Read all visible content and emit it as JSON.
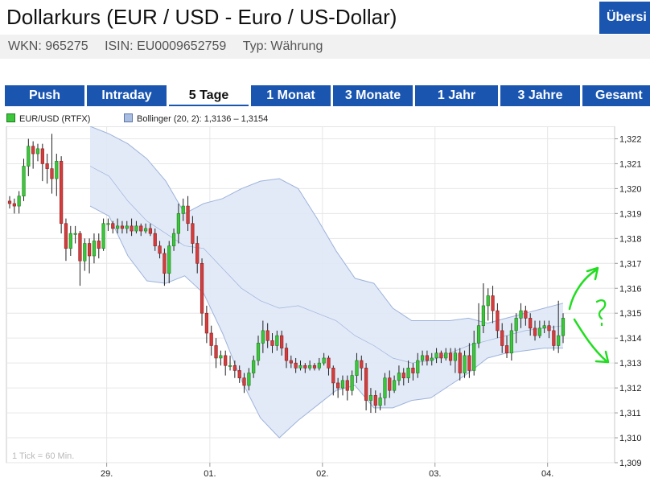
{
  "header": {
    "title": "Dollarkurs (EUR / USD - Euro / US-Dollar)",
    "overview_button": "Übersi",
    "wkn": "WKN: 965275",
    "isin": "ISIN: EU0009652759",
    "typ": "Typ: Währung"
  },
  "tabs": [
    {
      "label": "Push"
    },
    {
      "label": "Intraday"
    },
    {
      "label": "5 Tage"
    },
    {
      "label": "1 Monat"
    },
    {
      "label": "3 Monate"
    },
    {
      "label": "1 Jahr"
    },
    {
      "label": "3 Jahre"
    },
    {
      "label": "Gesamt"
    }
  ],
  "active_tab": "5 Tage",
  "legend": {
    "series1": "EUR/USD (RTFX)",
    "series2": "Bollinger (20, 2): 1,3136 – 1,3154"
  },
  "footnote": "1 Tick = 60 Min.",
  "colors": {
    "accent": "#1a55b0",
    "up": "#3bc63b",
    "down": "#d63c3c",
    "band_fill": "#dfe8f7",
    "band_line": "#9db3da",
    "annotation": "#22dd22"
  },
  "chart_data": {
    "type": "candlestick",
    "x_tick_labels": [
      "29.",
      "01.",
      "02.",
      "03.",
      "04."
    ],
    "y_ticks": [
      "1,309",
      "1,310",
      "1,311",
      "1,312",
      "1,313",
      "1,314",
      "1,315",
      "1,316",
      "1,317",
      "1,318",
      "1,319",
      "1,320",
      "1,321",
      "1,322"
    ],
    "ylim": [
      1.309,
      1.3225
    ],
    "grid": true,
    "candles": [
      [
        1.3195,
        1.3194,
        1.3197,
        1.3192
      ],
      [
        1.3194,
        1.3193,
        1.3196,
        1.319
      ],
      [
        1.3193,
        1.3197,
        1.3199,
        1.319
      ],
      [
        1.3197,
        1.3209,
        1.3212,
        1.3195
      ],
      [
        1.3209,
        1.3217,
        1.322,
        1.3205
      ],
      [
        1.3217,
        1.3214,
        1.3219,
        1.3208
      ],
      [
        1.3214,
        1.3216,
        1.3218,
        1.3211
      ],
      [
        1.3216,
        1.321,
        1.3218,
        1.3203
      ],
      [
        1.321,
        1.3208,
        1.3214,
        1.3202
      ],
      [
        1.3208,
        1.3204,
        1.3222,
        1.3198
      ],
      [
        1.3204,
        1.3211,
        1.3214,
        1.3197
      ],
      [
        1.3211,
        1.3186,
        1.3213,
        1.3182
      ],
      [
        1.3186,
        1.3176,
        1.3188,
        1.3171
      ],
      [
        1.3176,
        1.3182,
        1.3185,
        1.3173
      ],
      [
        1.3182,
        1.3182,
        1.3185,
        1.3178
      ],
      [
        1.3182,
        1.3171,
        1.3183,
        1.3161
      ],
      [
        1.3171,
        1.3178,
        1.318,
        1.3167
      ],
      [
        1.3178,
        1.3173,
        1.318,
        1.3166
      ],
      [
        1.3173,
        1.3179,
        1.3182,
        1.317
      ],
      [
        1.3179,
        1.3176,
        1.3182,
        1.3172
      ],
      [
        1.3176,
        1.3186,
        1.3188,
        1.3175
      ],
      [
        1.3186,
        1.3186,
        1.3188,
        1.3183
      ],
      [
        1.3186,
        1.3184,
        1.3187,
        1.3182
      ],
      [
        1.3184,
        1.3185,
        1.3188,
        1.3182
      ],
      [
        1.3185,
        1.3184,
        1.3187,
        1.3182
      ],
      [
        1.3184,
        1.3185,
        1.3187,
        1.3182
      ],
      [
        1.3185,
        1.3183,
        1.3188,
        1.3181
      ],
      [
        1.3183,
        1.3185,
        1.3187,
        1.3182
      ],
      [
        1.3185,
        1.3183,
        1.3186,
        1.3181
      ],
      [
        1.3183,
        1.3184,
        1.3186,
        1.3182
      ],
      [
        1.3184,
        1.3182,
        1.3186,
        1.3181
      ],
      [
        1.3182,
        1.3177,
        1.3184,
        1.3175
      ],
      [
        1.3177,
        1.3174,
        1.3179,
        1.3172
      ],
      [
        1.3174,
        1.3166,
        1.3176,
        1.3161
      ],
      [
        1.3166,
        1.3177,
        1.3179,
        1.3162
      ],
      [
        1.3177,
        1.3182,
        1.3184,
        1.3175
      ],
      [
        1.3182,
        1.319,
        1.3194,
        1.3178
      ],
      [
        1.319,
        1.3193,
        1.3196,
        1.3187
      ],
      [
        1.3193,
        1.3186,
        1.3197,
        1.3183
      ],
      [
        1.3186,
        1.3178,
        1.3189,
        1.3174
      ],
      [
        1.3178,
        1.317,
        1.3181,
        1.3166
      ],
      [
        1.317,
        1.315,
        1.3172,
        1.3145
      ],
      [
        1.315,
        1.3142,
        1.3153,
        1.3138
      ],
      [
        1.3142,
        1.3137,
        1.3145,
        1.3133
      ],
      [
        1.3137,
        1.3132,
        1.314,
        1.3128
      ],
      [
        1.3132,
        1.3133,
        1.3135,
        1.3129
      ],
      [
        1.3133,
        1.3129,
        1.3135,
        1.3125
      ],
      [
        1.3129,
        1.3129,
        1.3133,
        1.3127
      ],
      [
        1.3129,
        1.3127,
        1.3131,
        1.3124
      ],
      [
        1.3127,
        1.3124,
        1.3129,
        1.3122
      ],
      [
        1.3124,
        1.3121,
        1.3126,
        1.3118
      ],
      [
        1.3121,
        1.3126,
        1.3128,
        1.3119
      ],
      [
        1.3126,
        1.3131,
        1.3133,
        1.3124
      ],
      [
        1.3131,
        1.3138,
        1.3141,
        1.3129
      ],
      [
        1.3138,
        1.3143,
        1.3147,
        1.3134
      ],
      [
        1.3143,
        1.3139,
        1.3146,
        1.3136
      ],
      [
        1.3139,
        1.3137,
        1.3142,
        1.3134
      ],
      [
        1.3137,
        1.3141,
        1.3143,
        1.3135
      ],
      [
        1.3141,
        1.3136,
        1.3143,
        1.3133
      ],
      [
        1.3136,
        1.3131,
        1.3138,
        1.3128
      ],
      [
        1.3131,
        1.313,
        1.3133,
        1.3128
      ],
      [
        1.313,
        1.3128,
        1.3132,
        1.3126
      ],
      [
        1.3128,
        1.3129,
        1.3131,
        1.3127
      ],
      [
        1.3129,
        1.3128,
        1.313,
        1.3126
      ],
      [
        1.3128,
        1.3129,
        1.3131,
        1.3127
      ],
      [
        1.3129,
        1.3128,
        1.313,
        1.3127
      ],
      [
        1.3128,
        1.313,
        1.3132,
        1.3127
      ],
      [
        1.313,
        1.3132,
        1.3134,
        1.3129
      ],
      [
        1.3132,
        1.3128,
        1.3133,
        1.3125
      ],
      [
        1.3128,
        1.3122,
        1.3129,
        1.3117
      ],
      [
        1.3122,
        1.312,
        1.3124,
        1.3116
      ],
      [
        1.312,
        1.3123,
        1.3125,
        1.3117
      ],
      [
        1.3123,
        1.3119,
        1.3125,
        1.3115
      ],
      [
        1.3119,
        1.3125,
        1.3127,
        1.3117
      ],
      [
        1.3125,
        1.3131,
        1.3134,
        1.3122
      ],
      [
        1.3131,
        1.3128,
        1.3133,
        1.3123
      ],
      [
        1.3128,
        1.3115,
        1.313,
        1.3111
      ],
      [
        1.3115,
        1.3117,
        1.312,
        1.311
      ],
      [
        1.3117,
        1.3113,
        1.3119,
        1.311
      ],
      [
        1.3113,
        1.3116,
        1.3118,
        1.3111
      ],
      [
        1.3116,
        1.3124,
        1.3126,
        1.3113
      ],
      [
        1.3124,
        1.3119,
        1.3127,
        1.3116
      ],
      [
        1.3119,
        1.3123,
        1.3125,
        1.3118
      ],
      [
        1.3123,
        1.3126,
        1.3129,
        1.3121
      ],
      [
        1.3126,
        1.3124,
        1.3128,
        1.3121
      ],
      [
        1.3124,
        1.3128,
        1.3131,
        1.3122
      ],
      [
        1.3128,
        1.3126,
        1.313,
        1.3123
      ],
      [
        1.3126,
        1.3131,
        1.3134,
        1.3124
      ],
      [
        1.3131,
        1.3133,
        1.3135,
        1.3129
      ],
      [
        1.3133,
        1.3131,
        1.3135,
        1.3129
      ],
      [
        1.3131,
        1.3132,
        1.3134,
        1.3129
      ],
      [
        1.3132,
        1.3134,
        1.3136,
        1.313
      ],
      [
        1.3134,
        1.3132,
        1.3135,
        1.313
      ],
      [
        1.3132,
        1.3134,
        1.3136,
        1.3131
      ],
      [
        1.3134,
        1.3131,
        1.3136,
        1.3129
      ],
      [
        1.3131,
        1.3134,
        1.3136,
        1.3126
      ],
      [
        1.3134,
        1.3126,
        1.3136,
        1.3123
      ],
      [
        1.3126,
        1.3133,
        1.3135,
        1.3124
      ],
      [
        1.3133,
        1.3127,
        1.3138,
        1.3124
      ],
      [
        1.3127,
        1.3138,
        1.3143,
        1.3125
      ],
      [
        1.3138,
        1.3145,
        1.3154,
        1.3136
      ],
      [
        1.3145,
        1.3153,
        1.3162,
        1.3142
      ],
      [
        1.3153,
        1.3157,
        1.316,
        1.3147
      ],
      [
        1.3157,
        1.3151,
        1.3161,
        1.3146
      ],
      [
        1.3151,
        1.3143,
        1.3154,
        1.314
      ],
      [
        1.3143,
        1.3137,
        1.3146,
        1.3134
      ],
      [
        1.3137,
        1.3134,
        1.3141,
        1.3132
      ],
      [
        1.3134,
        1.3143,
        1.3146,
        1.3131
      ],
      [
        1.3143,
        1.3148,
        1.315,
        1.3138
      ],
      [
        1.3148,
        1.3151,
        1.3154,
        1.3144
      ],
      [
        1.3151,
        1.3148,
        1.3153,
        1.3145
      ],
      [
        1.3148,
        1.3144,
        1.315,
        1.3141
      ],
      [
        1.3144,
        1.3141,
        1.3147,
        1.3139
      ],
      [
        1.3141,
        1.3144,
        1.3147,
        1.314
      ],
      [
        1.3144,
        1.3145,
        1.3147,
        1.3142
      ],
      [
        1.3145,
        1.3143,
        1.3147,
        1.314
      ],
      [
        1.3143,
        1.3137,
        1.3145,
        1.3135
      ],
      [
        1.3137,
        1.3141,
        1.3155,
        1.3134
      ],
      [
        1.3141,
        1.3148,
        1.315,
        1.3138
      ]
    ],
    "bollinger_upper": [
      1.3225,
      1.3222,
      1.3218,
      1.3212,
      1.3203,
      1.319,
      1.3194,
      1.3196,
      1.32,
      1.3203,
      1.3204,
      1.32,
      1.3188,
      1.3175,
      1.3164,
      1.3162,
      1.3152,
      1.3147,
      1.3147,
      1.3147,
      1.3148,
      1.3146,
      1.3148,
      1.315,
      1.3152,
      1.3154
    ],
    "bollinger_lower": [
      1.3193,
      1.3189,
      1.3173,
      1.3163,
      1.3162,
      1.3165,
      1.3158,
      1.3142,
      1.3123,
      1.3108,
      1.31,
      1.3107,
      1.3113,
      1.3119,
      1.3121,
      1.3112,
      1.3112,
      1.3115,
      1.3116,
      1.3121,
      1.3126,
      1.3132,
      1.3134,
      1.3135,
      1.3136,
      1.3136
    ],
    "bollinger_middle": [
      1.3209,
      1.3205,
      1.3195,
      1.3187,
      1.3182,
      1.3177,
      1.3176,
      1.3168,
      1.316,
      1.3155,
      1.3152,
      1.3153,
      1.315,
      1.3147,
      1.3141,
      1.3137,
      1.3132,
      1.313,
      1.3131,
      1.3134,
      1.3137,
      1.3139,
      1.3141,
      1.3143,
      1.3144,
      1.3145
    ]
  }
}
